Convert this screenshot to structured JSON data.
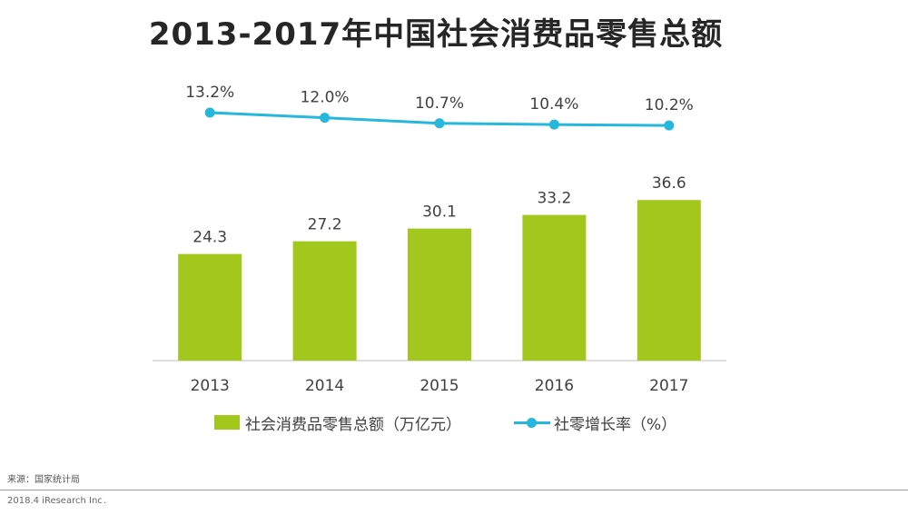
{
  "title": "2013-2017年中国社会消费品零售总额",
  "chart_data": {
    "type": "bar",
    "categories": [
      "2013",
      "2014",
      "2015",
      "2016",
      "2017"
    ],
    "series": [
      {
        "name": "社会消费品零售总额（万亿元）",
        "type": "bar",
        "values": [
          24.3,
          27.2,
          30.1,
          33.2,
          36.6
        ],
        "labels": [
          "24.3",
          "27.2",
          "30.1",
          "33.2",
          "36.6"
        ],
        "color": "#A2C81E"
      },
      {
        "name": "社零增长率（%）",
        "type": "line",
        "values": [
          13.2,
          12.0,
          10.7,
          10.4,
          10.2
        ],
        "labels": [
          "13.2%",
          "12.0%",
          "10.7%",
          "10.4%",
          "10.2%"
        ],
        "color": "#25B7DC"
      }
    ],
    "legend_position": "bottom",
    "grid": false
  },
  "source": "来源：国家统计局",
  "footer": "2018.4 iResearch Inc",
  "footer_dot": "."
}
